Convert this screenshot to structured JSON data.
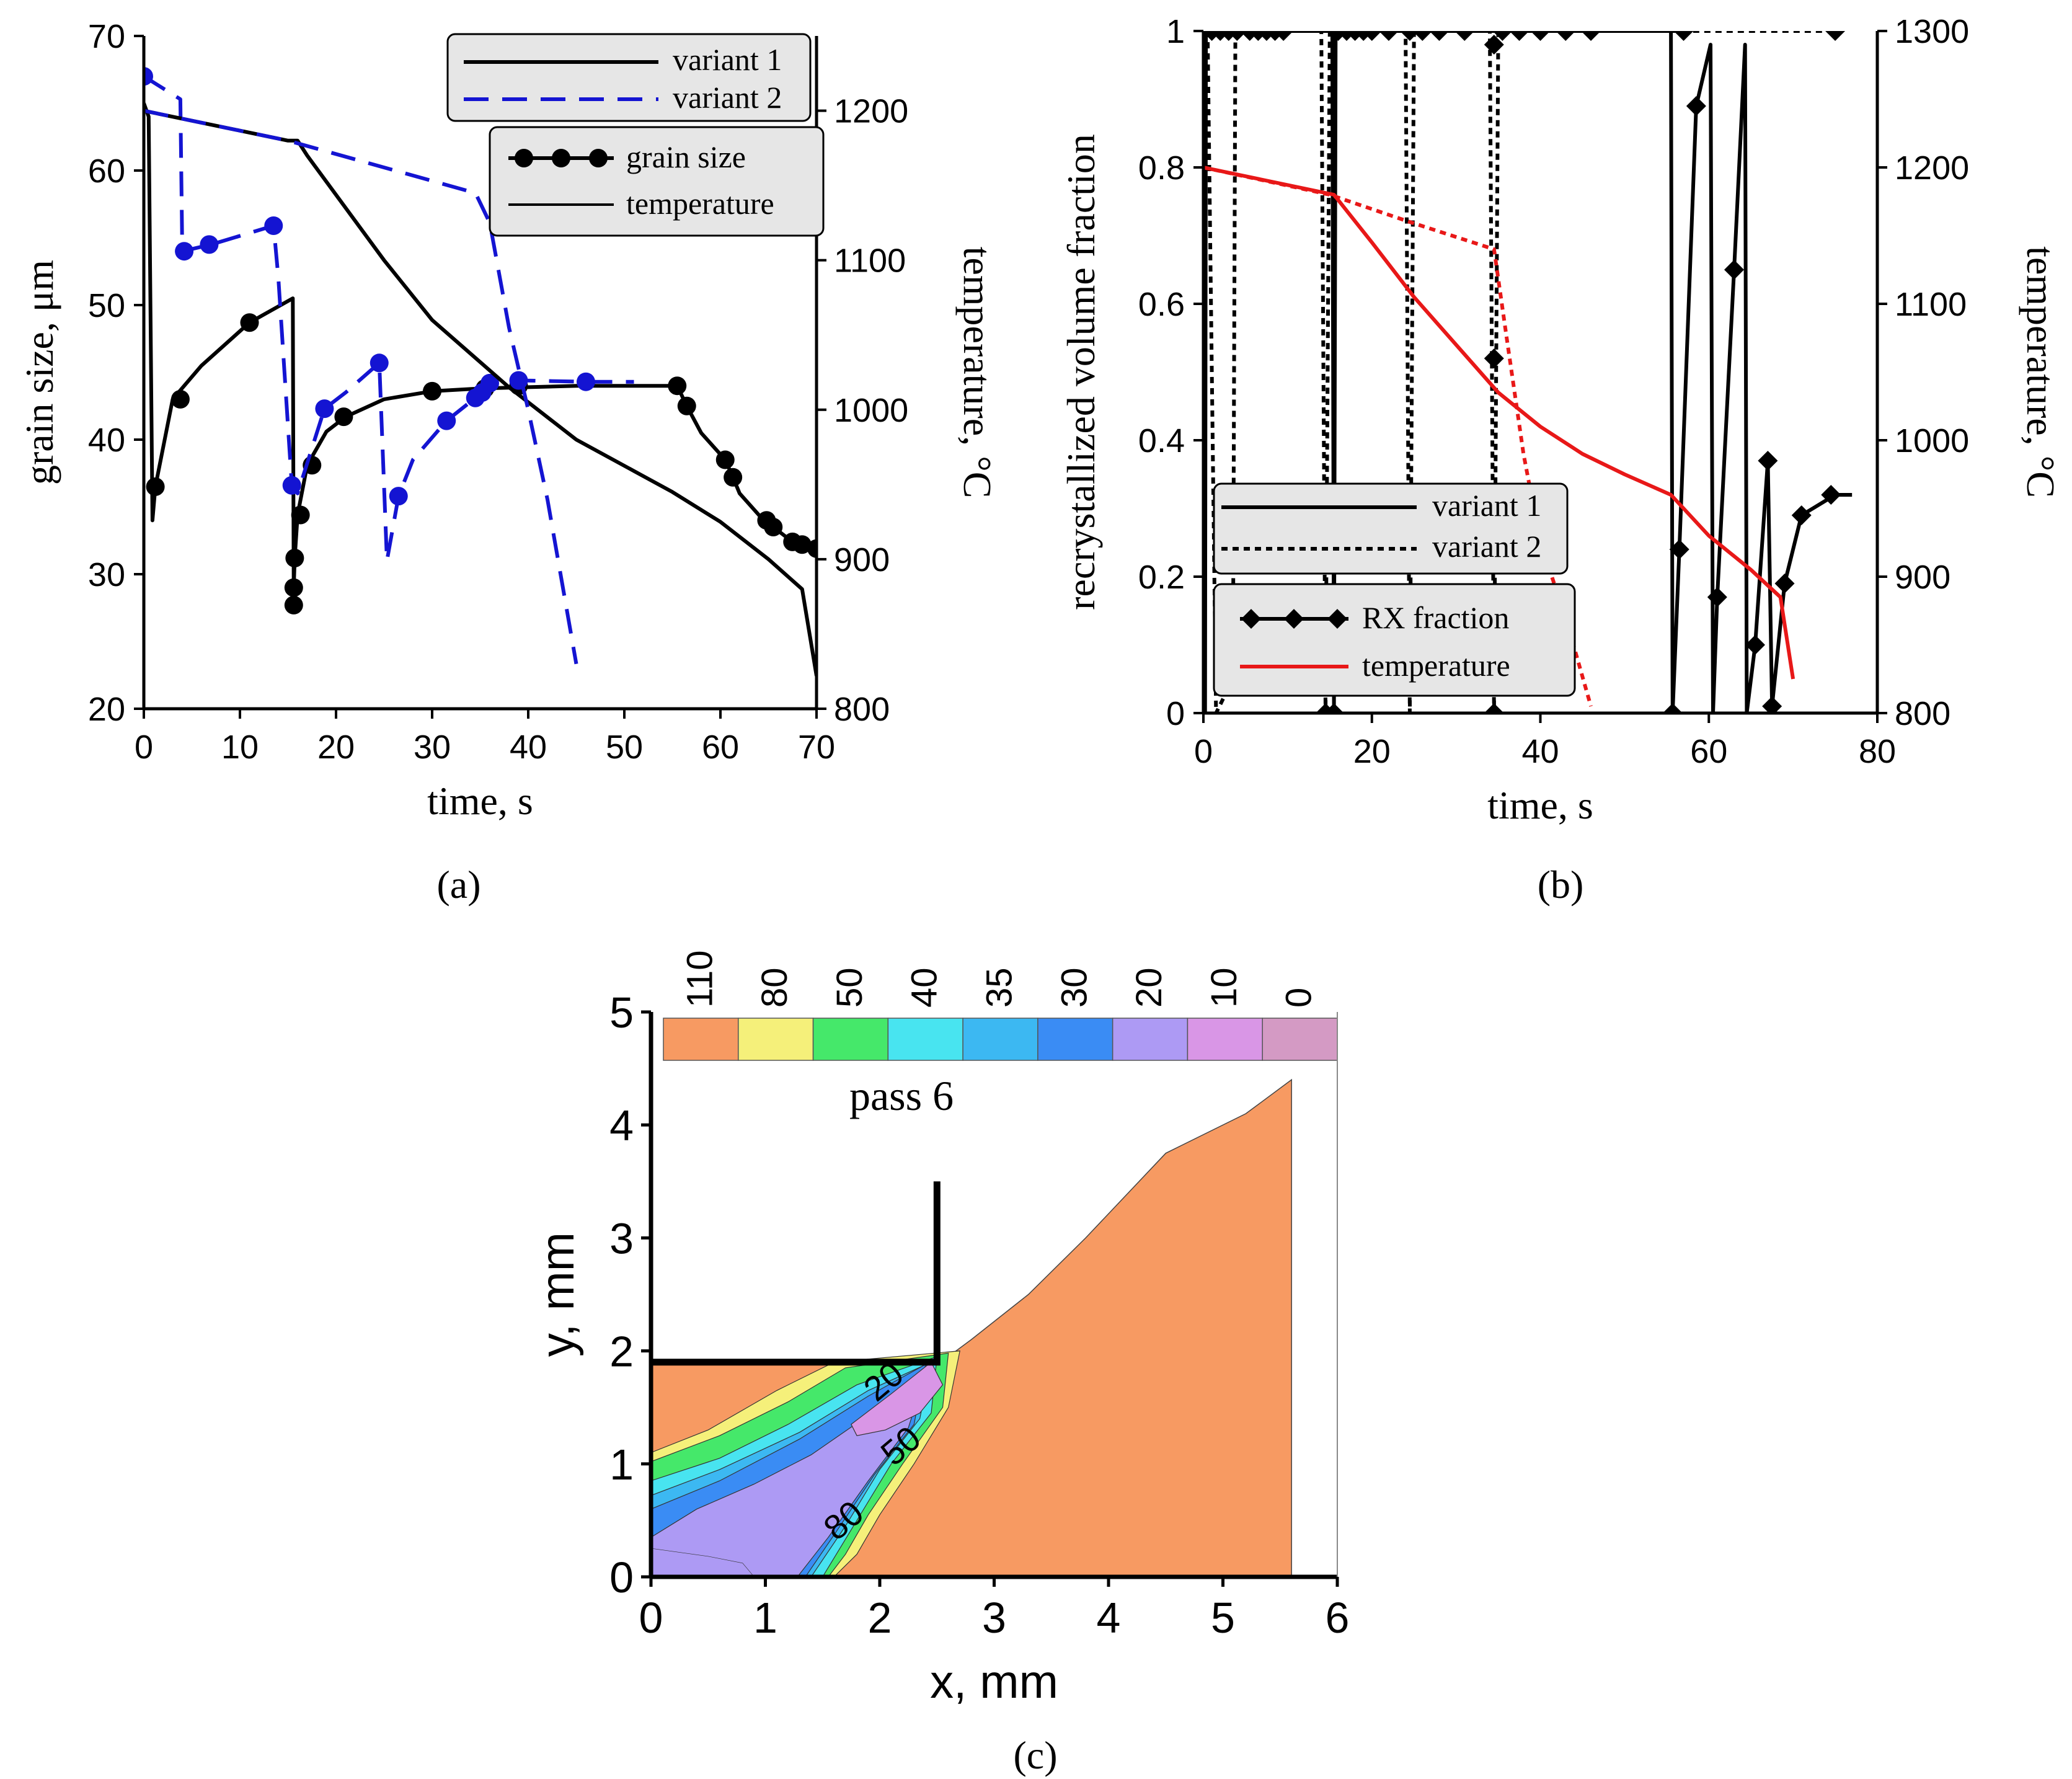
{
  "chart_data": [
    {
      "id": "a",
      "type": "line",
      "caption": "(a)",
      "xlabel": "time, s",
      "ylabel": "grain size, μm",
      "y2label": "temperature, °C",
      "xlim": [
        0,
        70
      ],
      "ylim": [
        20,
        70
      ],
      "y2lim": [
        800,
        1250
      ],
      "xticks": [
        0,
        10,
        20,
        30,
        40,
        50,
        60,
        70
      ],
      "yticks": [
        20,
        30,
        40,
        50,
        60,
        70
      ],
      "y2ticks": [
        800,
        900,
        1000,
        1100,
        1200
      ],
      "legend_variants": [
        {
          "name": "variant 1",
          "style": "solid",
          "color": "#000000"
        },
        {
          "name": "variant 2",
          "style": "dashed",
          "color": "#1414d2"
        }
      ],
      "legend_series": [
        {
          "name": "grain size",
          "marker": "circle"
        },
        {
          "name": "temperature",
          "marker": "none"
        }
      ],
      "series": [
        {
          "name": "grain size variant 1",
          "axis": "y",
          "color": "#000000",
          "style": "solid",
          "points": [
            [
              0,
              65
            ],
            [
              0.5,
              64
            ],
            [
              0.9,
              34
            ],
            [
              1.2,
              36.5
            ],
            [
              3,
              43
            ],
            [
              6,
              45.5
            ],
            [
              11,
              48.7
            ],
            [
              15.5,
              50.5
            ],
            [
              15.6,
              27.7
            ],
            [
              15.6,
              29
            ],
            [
              15.7,
              31.2
            ],
            [
              16,
              34.4
            ],
            [
              17,
              38.1
            ],
            [
              19,
              40.6
            ],
            [
              21,
              41.7
            ],
            [
              25,
              43
            ],
            [
              30,
              43.6
            ],
            [
              35,
              43.8
            ],
            [
              40,
              43.9
            ],
            [
              45,
              44
            ],
            [
              50,
              44
            ],
            [
              55.5,
              44
            ],
            [
              56.5,
              42.5
            ],
            [
              58,
              40.5
            ],
            [
              60.5,
              38.5
            ],
            [
              61.3,
              37.2
            ],
            [
              62,
              36
            ],
            [
              64.5,
              34
            ],
            [
              65.5,
              33.5
            ],
            [
              67.5,
              32.4
            ],
            [
              68.5,
              32.2
            ],
            [
              70,
              31.9
            ]
          ],
          "markers": [
            [
              1.2,
              36.5
            ],
            [
              3.8,
              43
            ],
            [
              11,
              48.7
            ],
            [
              15.6,
              27.7
            ],
            [
              15.6,
              29
            ],
            [
              15.7,
              31.2
            ],
            [
              16.3,
              34.4
            ],
            [
              17.5,
              38.1
            ],
            [
              20.8,
              41.7
            ],
            [
              30,
              43.6
            ],
            [
              35.5,
              43.8
            ],
            [
              39,
              44
            ],
            [
              55.5,
              44
            ],
            [
              56.5,
              42.5
            ],
            [
              60.5,
              38.5
            ],
            [
              61.3,
              37.2
            ],
            [
              64.8,
              34
            ],
            [
              65.5,
              33.5
            ],
            [
              67.5,
              32.4
            ],
            [
              68.5,
              32.2
            ],
            [
              70,
              31.9
            ]
          ]
        },
        {
          "name": "grain size variant 2",
          "axis": "y",
          "color": "#1414d2",
          "style": "dashed",
          "points": [
            [
              0,
              67
            ],
            [
              3.8,
              65.3
            ],
            [
              4,
              54
            ],
            [
              7,
              54.5
            ],
            [
              13.5,
              55.9
            ],
            [
              14,
              52
            ],
            [
              15.4,
              36.6
            ],
            [
              16,
              36
            ],
            [
              18.8,
              42.3
            ],
            [
              21,
              43.5
            ],
            [
              24.5,
              45.7
            ],
            [
              25.3,
              31
            ],
            [
              26.5,
              35.8
            ],
            [
              28,
              38.5
            ],
            [
              31.5,
              41.4
            ],
            [
              34.5,
              43.1
            ],
            [
              35.2,
              43.5
            ],
            [
              36,
              44.2
            ],
            [
              39,
              44.4
            ],
            [
              46,
              44.3
            ],
            [
              51,
              44.3
            ]
          ],
          "markers": [
            [
              0,
              67
            ],
            [
              4.2,
              54
            ],
            [
              6.8,
              54.5
            ],
            [
              13.5,
              55.9
            ],
            [
              15.4,
              36.6
            ],
            [
              18.8,
              42.3
            ],
            [
              24.5,
              45.7
            ],
            [
              26.5,
              35.8
            ],
            [
              31.5,
              41.4
            ],
            [
              34.5,
              43.1
            ],
            [
              35.2,
              43.5
            ],
            [
              36,
              44.2
            ],
            [
              39,
              44.4
            ],
            [
              46,
              44.3
            ]
          ]
        },
        {
          "name": "temperature variant 1",
          "axis": "y2",
          "color": "#000000",
          "style": "solid",
          "points": [
            [
              0,
              1200
            ],
            [
              15,
              1180
            ],
            [
              16,
              1180
            ],
            [
              17,
              1170
            ],
            [
              25,
              1100
            ],
            [
              30,
              1060
            ],
            [
              38,
              1015
            ],
            [
              45,
              980
            ],
            [
              55,
              945
            ],
            [
              60,
              925
            ],
            [
              65,
              900
            ],
            [
              68.5,
              880
            ],
            [
              70,
              822
            ]
          ]
        },
        {
          "name": "temperature variant 2",
          "axis": "y2",
          "color": "#1414d2",
          "style": "dashed",
          "points": [
            [
              0,
              1200
            ],
            [
              15,
              1180
            ],
            [
              34.5,
              1145
            ],
            [
              36,
              1125
            ],
            [
              38,
              1055
            ],
            [
              40,
              1000
            ],
            [
              42,
              940
            ],
            [
              45,
              830
            ]
          ]
        }
      ]
    },
    {
      "id": "b",
      "type": "line",
      "caption": "(b)",
      "xlabel": "time, s",
      "ylabel": "recrystallized volume fraction",
      "y2label": "temperature, °C",
      "xlim": [
        0,
        80
      ],
      "ylim": [
        0,
        1
      ],
      "y2lim": [
        800,
        1300
      ],
      "xticks": [
        0,
        20,
        40,
        60,
        80
      ],
      "yticks": [
        0,
        0.2,
        0.4,
        0.6,
        0.8,
        1
      ],
      "ytick_labels": [
        "0",
        "0.2",
        "0.4",
        "0.6",
        "0.8",
        "1"
      ],
      "y2ticks": [
        800,
        900,
        1000,
        1100,
        1200,
        1300
      ],
      "legend_variants": [
        {
          "name": "variant 1",
          "style": "solid",
          "color": "#000000"
        },
        {
          "name": "variant 2",
          "style": "dotted",
          "color": "#000000"
        }
      ],
      "legend_series": [
        {
          "name": "RX fraction",
          "marker": "diamond",
          "color": "#000000"
        },
        {
          "name": "temperature",
          "marker": "none",
          "color": "#e81818"
        }
      ],
      "series": [
        {
          "name": "RX fraction variant 1",
          "axis": "y",
          "color": "#000000",
          "style": "solid",
          "points": [
            [
              0.1,
              1
            ],
            [
              0.2,
              0
            ],
            [
              0.3,
              1
            ],
            [
              15.3,
              1
            ],
            [
              15.5,
              0
            ],
            [
              15.7,
              1
            ],
            [
              55.5,
              1
            ],
            [
              55.7,
              0
            ],
            [
              56.5,
              0.24
            ],
            [
              58.5,
              0.89
            ],
            [
              60.2,
              0.98
            ],
            [
              60.5,
              0
            ],
            [
              61,
              0.17
            ],
            [
              63,
              0.65
            ],
            [
              64.3,
              0.98
            ],
            [
              64.5,
              0
            ],
            [
              65.5,
              0.1
            ],
            [
              67,
              0.37
            ],
            [
              67.5,
              0.01
            ],
            [
              69,
              0.19
            ],
            [
              71,
              0.29
            ],
            [
              75,
              0.32
            ],
            [
              77,
              0.32
            ]
          ],
          "markers": [
            [
              15.5,
              0
            ],
            [
              55.7,
              0
            ],
            [
              56.5,
              0.24
            ],
            [
              58.5,
              0.89
            ],
            [
              61,
              0.17
            ],
            [
              63,
              0.65
            ],
            [
              65.5,
              0.1
            ],
            [
              67,
              0.37
            ],
            [
              67.5,
              0.01
            ],
            [
              69,
              0.19
            ],
            [
              71,
              0.29
            ],
            [
              74.5,
              0.32
            ]
          ]
        },
        {
          "name": "RX fraction variant 2",
          "axis": "y",
          "color": "#000000",
          "style": "dotted",
          "points": [
            [
              0.5,
              1
            ],
            [
              1.5,
              0
            ],
            [
              3.5,
              0.05
            ],
            [
              3.8,
              1
            ],
            [
              14,
              1
            ],
            [
              14.5,
              0
            ],
            [
              15,
              1
            ],
            [
              24,
              1
            ],
            [
              24.5,
              0
            ],
            [
              25,
              1
            ],
            [
              34,
              1
            ],
            [
              34.5,
              0
            ],
            [
              35,
              1
            ],
            [
              57,
              1
            ],
            [
              75,
              1
            ]
          ],
          "markers": [
            [
              0,
              1
            ],
            [
              1,
              1
            ],
            [
              2,
              1
            ],
            [
              3,
              1
            ],
            [
              4,
              1
            ],
            [
              5.5,
              1
            ],
            [
              6.5,
              1
            ],
            [
              7.5,
              1
            ],
            [
              8.5,
              1
            ],
            [
              9.5,
              1
            ],
            [
              14.5,
              0
            ],
            [
              16,
              1
            ],
            [
              17,
              1
            ],
            [
              18,
              1
            ],
            [
              19,
              1
            ],
            [
              20,
              1
            ],
            [
              22,
              1
            ],
            [
              24.5,
              1
            ],
            [
              26,
              1
            ],
            [
              28,
              1
            ],
            [
              31,
              1
            ],
            [
              34.5,
              0.98
            ],
            [
              34.5,
              0.52
            ],
            [
              34.5,
              0
            ],
            [
              35.5,
              1
            ],
            [
              37.5,
              1
            ],
            [
              40,
              1
            ],
            [
              43,
              1
            ],
            [
              46,
              1
            ],
            [
              57,
              1
            ],
            [
              75,
              1
            ]
          ]
        },
        {
          "name": "temperature variant 1",
          "axis": "y2",
          "color": "#e81818",
          "style": "solid",
          "points": [
            [
              0,
              1200
            ],
            [
              15.5,
              1180
            ],
            [
              20,
              1145
            ],
            [
              25,
              1105
            ],
            [
              30,
              1070
            ],
            [
              35,
              1035
            ],
            [
              40,
              1010
            ],
            [
              45,
              990
            ],
            [
              50,
              975
            ],
            [
              55.5,
              960
            ],
            [
              60,
              930
            ],
            [
              65,
              905
            ],
            [
              68.5,
              885
            ],
            [
              70,
              825
            ]
          ]
        },
        {
          "name": "temperature variant 2",
          "axis": "y2",
          "color": "#e81818",
          "style": "dotted",
          "points": [
            [
              0,
              1200
            ],
            [
              15,
              1180
            ],
            [
              24.5,
              1160
            ],
            [
              34.5,
              1140
            ],
            [
              36,
              1075
            ],
            [
              38,
              990
            ],
            [
              40,
              925
            ],
            [
              43,
              870
            ],
            [
              46,
              805
            ]
          ]
        }
      ]
    },
    {
      "id": "c",
      "type": "heatmap",
      "caption": "(c)",
      "annotation": "pass 6",
      "xlabel": "x, mm",
      "ylabel": "y, mm",
      "xlim": [
        0,
        6
      ],
      "ylim": [
        0,
        5
      ],
      "xticks": [
        0,
        1,
        2,
        3,
        4,
        5,
        6
      ],
      "yticks": [
        0,
        1,
        2,
        3,
        4,
        5
      ],
      "colorbar_labels": [
        "110",
        "80",
        "50",
        "40",
        "35",
        "30",
        "20",
        "10",
        "0"
      ],
      "colorbar_colors": [
        "#f79a62",
        "#f5f07a",
        "#45e86a",
        "#48e4f0",
        "#3cb8f2",
        "#3a8cf4",
        "#ad9af4",
        "#d996e6",
        "#d49ac4"
      ],
      "contour_labels": [
        {
          "text": "20",
          "x": 2.1,
          "y": 1.65
        },
        {
          "text": "50",
          "x": 2.25,
          "y": 1.08
        },
        {
          "text": "80",
          "x": 1.75,
          "y": 0.42
        }
      ],
      "workpiece_outline": [
        [
          0,
          0
        ],
        [
          0,
          1.9
        ],
        [
          2.5,
          1.9
        ],
        [
          2.6,
          1.95
        ],
        [
          2.8,
          2.1
        ],
        [
          3.3,
          2.5
        ],
        [
          3.8,
          3.0
        ],
        [
          4.5,
          3.75
        ],
        [
          5.2,
          4.1
        ],
        [
          5.6,
          4.4
        ],
        [
          5.6,
          0
        ]
      ],
      "tool_outline": [
        [
          0,
          1.9
        ],
        [
          2.5,
          1.9
        ],
        [
          2.5,
          3.5
        ]
      ]
    }
  ]
}
